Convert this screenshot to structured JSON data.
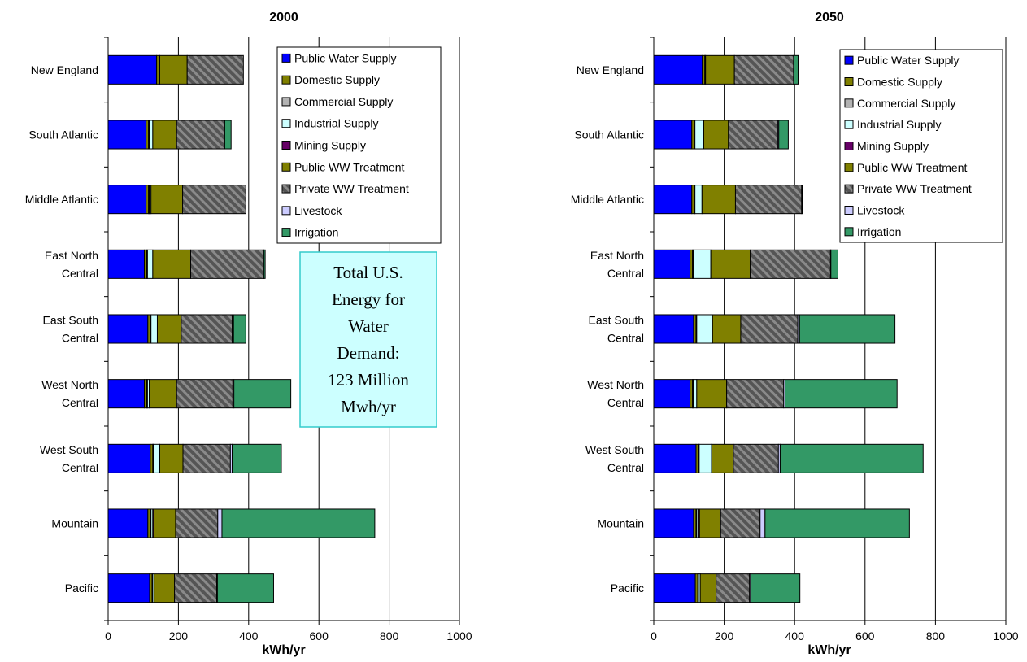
{
  "chart_data": [
    {
      "type": "bar",
      "orientation": "horizontal",
      "stacked": true,
      "title": "2000",
      "xlabel": "kWh/yr",
      "ylabel": "",
      "xlim": [
        0,
        1000
      ],
      "xticks": [
        "0",
        "200",
        "400",
        "600",
        "800",
        "1000"
      ],
      "grid": "vertical",
      "legend_placement": "top-right",
      "categories": [
        "New England",
        "South Atlantic",
        "Middle Atlantic",
        "East North Central",
        "East South Central",
        "West North Central",
        "West South Central",
        "Mountain",
        "Pacific"
      ],
      "category_lines": [
        [
          "New England"
        ],
        [
          "South Atlantic"
        ],
        [
          "Middle Atlantic"
        ],
        [
          "East North",
          "Central"
        ],
        [
          "East South",
          "Central"
        ],
        [
          "West North",
          "Central"
        ],
        [
          "West South",
          "Central"
        ],
        [
          "Mountain"
        ],
        [
          "Pacific"
        ]
      ],
      "series": [
        {
          "name": "Public Water Supply",
          "values": [
            138,
            108,
            108,
            103,
            113,
            103,
            120,
            113,
            118
          ]
        },
        {
          "name": "Domestic Supply",
          "values": [
            7,
            7,
            7,
            7,
            7,
            7,
            7,
            7,
            7
          ]
        },
        {
          "name": "Commercial  Supply",
          "values": [
            2,
            2,
            2,
            2,
            2,
            2,
            2,
            2,
            2
          ]
        },
        {
          "name": "Industrial  Supply",
          "values": [
            0,
            10,
            5,
            15,
            18,
            5,
            18,
            5,
            4
          ]
        },
        {
          "name": "Mining  Supply",
          "values": [
            0,
            0,
            0,
            0,
            0,
            0,
            0,
            3,
            0
          ]
        },
        {
          "name": "Public WW Treatment",
          "values": [
            78,
            68,
            90,
            108,
            68,
            78,
            66,
            62,
            58
          ]
        },
        {
          "name": "Private WW Treatment",
          "values": [
            160,
            135,
            180,
            207,
            145,
            160,
            135,
            120,
            120
          ]
        },
        {
          "name": "Livestock",
          "values": [
            0,
            2,
            0,
            1,
            4,
            3,
            5,
            12,
            2
          ]
        },
        {
          "name": "Irrigation",
          "values": [
            0,
            18,
            0,
            4,
            35,
            162,
            140,
            435,
            160
          ]
        }
      ]
    },
    {
      "type": "bar",
      "orientation": "horizontal",
      "stacked": true,
      "title": "2050",
      "xlabel": "kWh/yr",
      "ylabel": "",
      "xlim": [
        0,
        1000
      ],
      "xticks": [
        "0",
        "200",
        "400",
        "600",
        "800",
        "1000"
      ],
      "grid": "vertical",
      "legend_placement": "top-right",
      "categories": [
        "New England",
        "South Atlantic",
        "Middle Atlantic",
        "East North Central",
        "East South Central",
        "West North Central",
        "West South Central",
        "Mountain",
        "Pacific"
      ],
      "category_lines": [
        [
          "New England"
        ],
        [
          "South Atlantic"
        ],
        [
          "Middle Atlantic"
        ],
        [
          "East North",
          "Central"
        ],
        [
          "East South",
          "Central"
        ],
        [
          "West North",
          "Central"
        ],
        [
          "West South",
          "Central"
        ],
        [
          "Mountain"
        ],
        [
          "Pacific"
        ]
      ],
      "series": [
        {
          "name": "Public Water Supply",
          "values": [
            138,
            108,
            108,
            103,
            113,
            103,
            120,
            113,
            118
          ]
        },
        {
          "name": "Domestic Supply",
          "values": [
            7,
            7,
            7,
            7,
            7,
            7,
            7,
            7,
            7
          ]
        },
        {
          "name": "Commercial  Supply",
          "values": [
            2,
            2,
            2,
            2,
            2,
            2,
            2,
            2,
            2
          ]
        },
        {
          "name": "Industrial  Supply",
          "values": [
            0,
            25,
            20,
            50,
            45,
            10,
            35,
            5,
            5
          ]
        },
        {
          "name": "Mining  Supply",
          "values": [
            0,
            0,
            0,
            0,
            0,
            0,
            0,
            3,
            0
          ]
        },
        {
          "name": "Public WW Treatment",
          "values": [
            82,
            70,
            95,
            112,
            80,
            85,
            62,
            60,
            45
          ]
        },
        {
          "name": "Private WW Treatment",
          "values": [
            168,
            140,
            188,
            228,
            162,
            162,
            128,
            112,
            95
          ]
        },
        {
          "name": "Livestock",
          "values": [
            0,
            3,
            0,
            1,
            5,
            4,
            5,
            14,
            3
          ]
        },
        {
          "name": "Irrigation",
          "values": [
            13,
            27,
            2,
            20,
            271,
            318,
            406,
            410,
            140
          ]
        }
      ]
    }
  ],
  "legend": {
    "items": [
      {
        "label": "Public Water Supply",
        "color": "#0000ff",
        "pattern": "solid"
      },
      {
        "label": "Domestic Supply",
        "color": "#808000",
        "pattern": "solid"
      },
      {
        "label": "Commercial  Supply",
        "color": "#b3b3b3",
        "pattern": "solid"
      },
      {
        "label": "Industrial  Supply",
        "color": "#ccffff",
        "pattern": "solid"
      },
      {
        "label": "Mining  Supply",
        "color": "#660066",
        "pattern": "solid"
      },
      {
        "label": "Public WW Treatment",
        "color": "#808000",
        "pattern": "solid"
      },
      {
        "label": "Private WW Treatment",
        "color": "#555555",
        "pattern": "hatch"
      },
      {
        "label": "Livestock",
        "color": "#ccccff",
        "pattern": "solid"
      },
      {
        "label": "Irrigation",
        "color": "#339966",
        "pattern": "solid"
      }
    ]
  },
  "note": {
    "lines": [
      "Total U.S.",
      "Energy for",
      "Water",
      "Demand:",
      "123 Million",
      "Mwh/yr"
    ],
    "background": "#ccffff",
    "border": "#33cccc"
  }
}
